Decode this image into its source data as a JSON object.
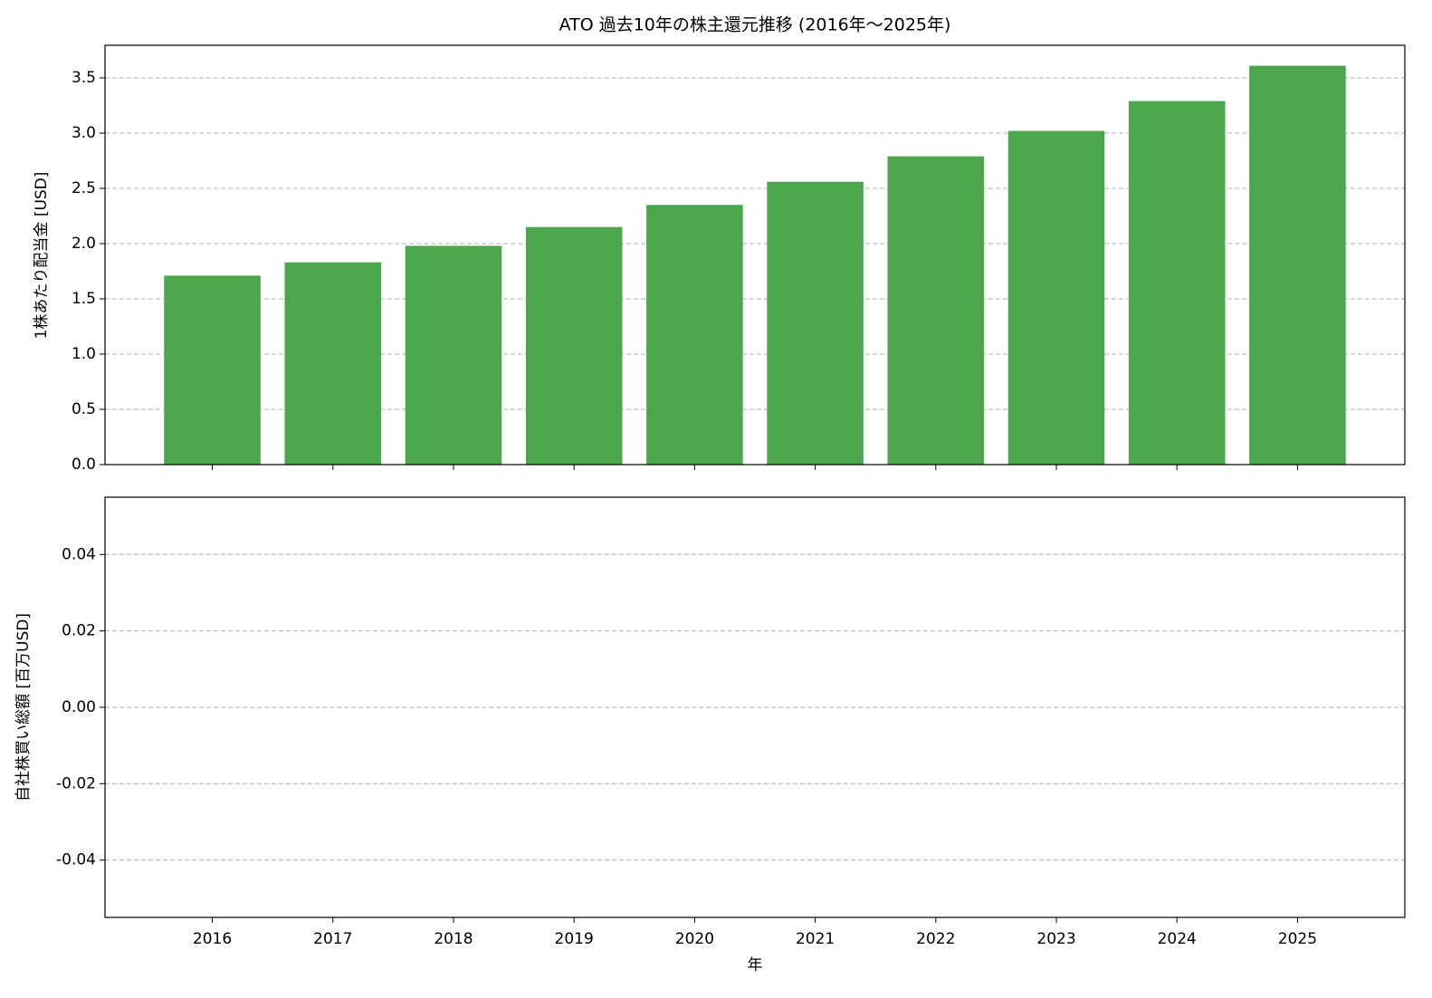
{
  "chart_data": [
    {
      "type": "bar",
      "title": "ATO 過去10年の株主還元推移 (2016年〜2025年)",
      "ylabel": "1株あたり配当金 [USD]",
      "values": [
        1.71,
        1.83,
        1.98,
        2.15,
        2.35,
        2.56,
        2.79,
        3.02,
        3.29,
        3.61
      ],
      "color": "#4ca64c",
      "ylim": [
        0,
        3.795
      ],
      "yticks": [
        {
          "value": 0,
          "label": "0.0"
        },
        0.5,
        {
          "value": 1,
          "label": "1.0"
        },
        1.5,
        {
          "value": 2,
          "label": "2.0"
        },
        2.5,
        {
          "value": 3,
          "label": "3.0"
        },
        3.5
      ],
      "grid": true
    },
    {
      "type": "bar",
      "ylabel": "自社株買い総額 [百万USD]",
      "xlabel": "年",
      "categories": [
        "2016",
        "2017",
        "2018",
        "2019",
        "2020",
        "2021",
        "2022",
        "2023",
        "2024",
        "2025"
      ],
      "ylim": [
        -0.055,
        0.055
      ],
      "yticks": [
        -0.04,
        -0.02,
        {
          "value": 0,
          "label": "0.00"
        },
        0.02,
        0.04
      ],
      "grid": true
    }
  ]
}
